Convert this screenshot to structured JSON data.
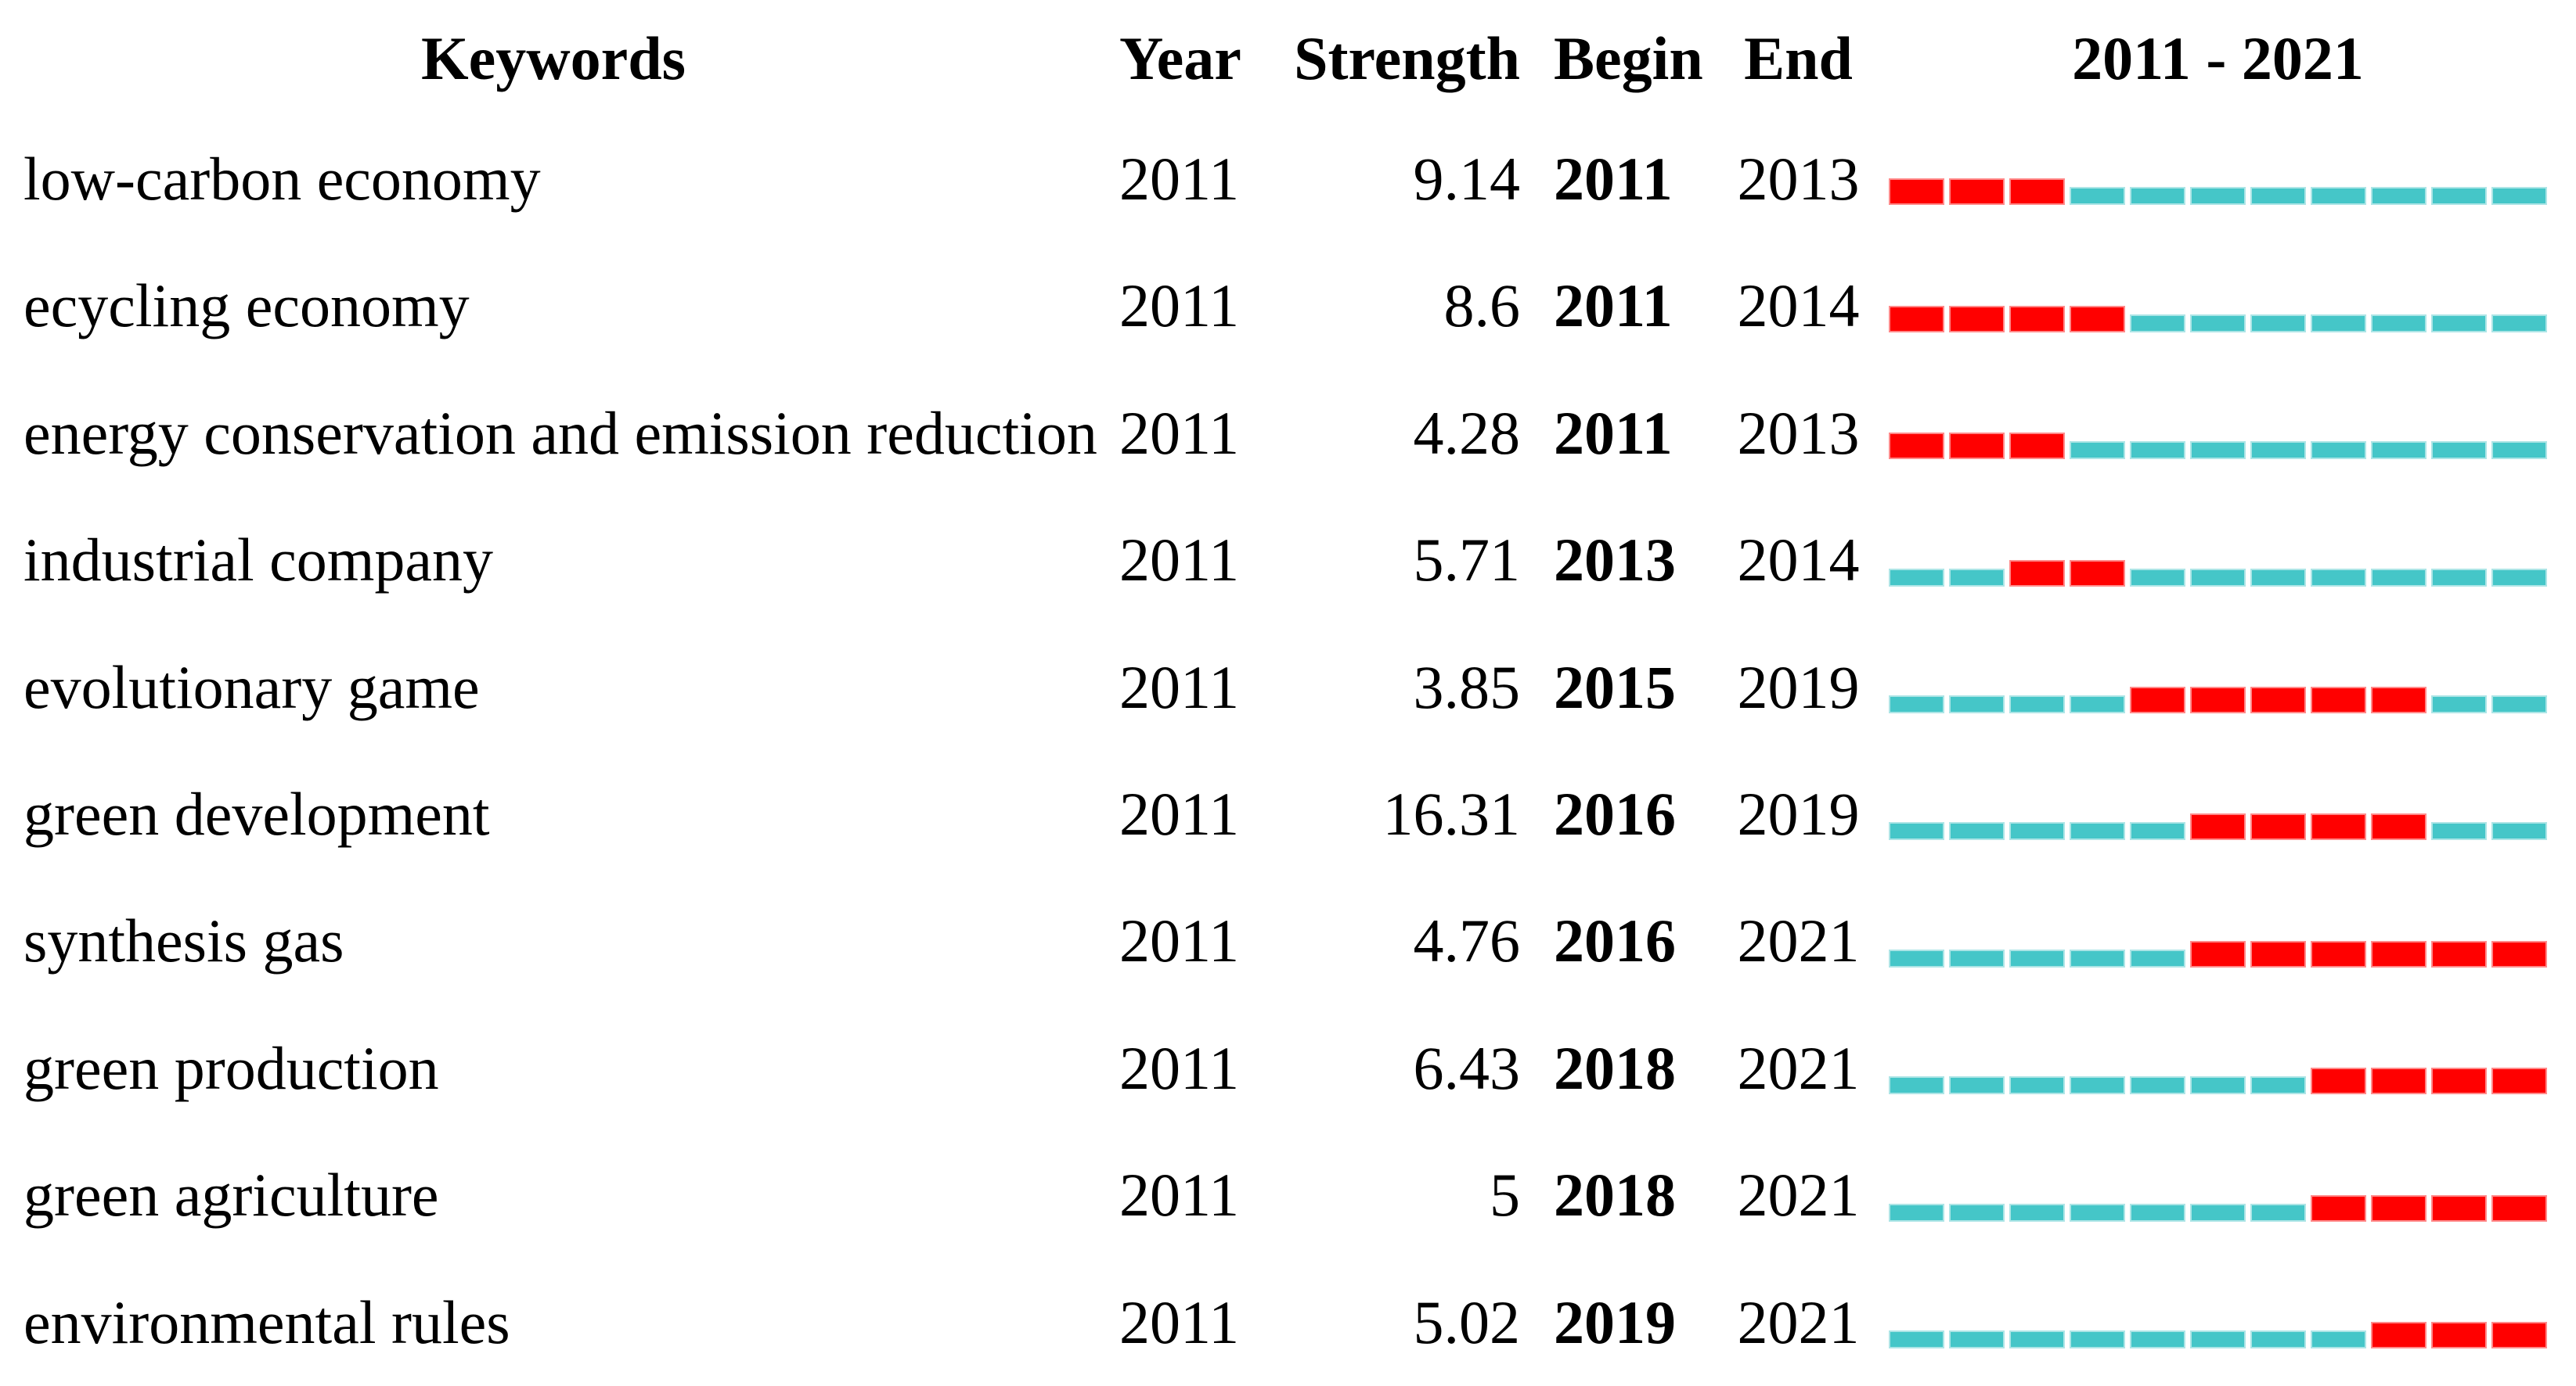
{
  "header": {
    "keywords": "Keywords",
    "year": "Year",
    "strength": "Strength",
    "begin": "Begin",
    "end": "End",
    "timeline": "2011 - 2021"
  },
  "timeline": {
    "start": 2011,
    "end": 2021
  },
  "colors": {
    "burst_red": "#FF0000",
    "base_teal": "#45C6C8"
  },
  "rows": [
    {
      "keyword": "low-carbon economy",
      "year": "2011",
      "strength": "9.14",
      "begin": "2011",
      "end": "2013"
    },
    {
      "keyword": "ecycling economy",
      "year": "2011",
      "strength": "8.6",
      "begin": "2011",
      "end": "2014"
    },
    {
      "keyword": "energy conservation and emission reduction",
      "year": "2011",
      "strength": "4.28",
      "begin": "2011",
      "end": "2013"
    },
    {
      "keyword": "industrial company",
      "year": "2011",
      "strength": "5.71",
      "begin": "2013",
      "end": "2014"
    },
    {
      "keyword": "evolutionary game",
      "year": "2011",
      "strength": "3.85",
      "begin": "2015",
      "end": "2019"
    },
    {
      "keyword": "green development",
      "year": "2011",
      "strength": "16.31",
      "begin": "2016",
      "end": "2019"
    },
    {
      "keyword": "synthesis gas",
      "year": "2011",
      "strength": "4.76",
      "begin": "2016",
      "end": "2021"
    },
    {
      "keyword": "green production",
      "year": "2011",
      "strength": "6.43",
      "begin": "2018",
      "end": "2021"
    },
    {
      "keyword": "green agriculture",
      "year": "2011",
      "strength": "5",
      "begin": "2018",
      "end": "2021"
    },
    {
      "keyword": "environmental rules",
      "year": "2011",
      "strength": "5.02",
      "begin": "2019",
      "end": "2021"
    }
  ],
  "chart_data": {
    "type": "table",
    "title": "2011 - 2021",
    "columns": [
      "Keywords",
      "Year",
      "Strength",
      "Begin",
      "End",
      "2011 - 2021"
    ],
    "timeline_years": [
      2011,
      2012,
      2013,
      2014,
      2015,
      2016,
      2017,
      2018,
      2019,
      2020,
      2021
    ],
    "legend": {
      "burst_period_color": "#FF0000",
      "non_burst_period_color": "#45C6C8"
    },
    "rows": [
      {
        "keyword": "low-carbon economy",
        "year": 2011,
        "strength": 9.14,
        "begin": 2011,
        "end": 2013
      },
      {
        "keyword": "ecycling economy",
        "year": 2011,
        "strength": 8.6,
        "begin": 2011,
        "end": 2014
      },
      {
        "keyword": "energy conservation and emission reduction",
        "year": 2011,
        "strength": 4.28,
        "begin": 2011,
        "end": 2013
      },
      {
        "keyword": "industrial company",
        "year": 2011,
        "strength": 5.71,
        "begin": 2013,
        "end": 2014
      },
      {
        "keyword": "evolutionary game",
        "year": 2011,
        "strength": 3.85,
        "begin": 2015,
        "end": 2019
      },
      {
        "keyword": "green development",
        "year": 2011,
        "strength": 16.31,
        "begin": 2016,
        "end": 2019
      },
      {
        "keyword": "synthesis gas",
        "year": 2011,
        "strength": 4.76,
        "begin": 2016,
        "end": 2021
      },
      {
        "keyword": "green production",
        "year": 2011,
        "strength": 6.43,
        "begin": 2018,
        "end": 2021
      },
      {
        "keyword": "green agriculture",
        "year": 2011,
        "strength": 5,
        "begin": 2018,
        "end": 2021
      },
      {
        "keyword": "environmental rules",
        "year": 2011,
        "strength": 5.02,
        "begin": 2019,
        "end": 2021
      }
    ]
  }
}
